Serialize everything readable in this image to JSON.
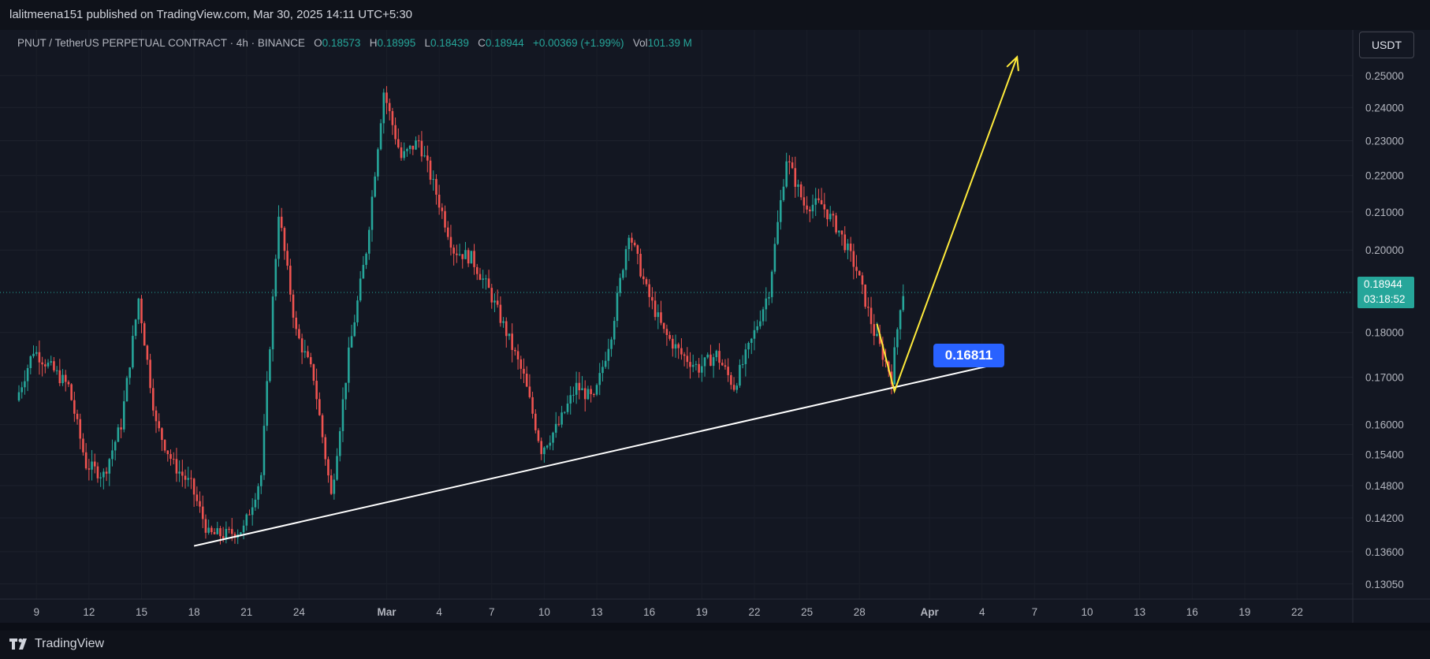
{
  "header": {
    "published_by": "lalitmeena151 published on TradingView.com, Mar 30, 2025 14:11 UTC+5:30"
  },
  "legend": {
    "symbol": "PNUT / TetherUS PERPETUAL CONTRACT · 4h · BINANCE",
    "open_label": "O",
    "open": "0.18573",
    "high_label": "H",
    "high": "0.18995",
    "low_label": "L",
    "low": "0.18439",
    "close_label": "C",
    "close": "0.18944",
    "change": "+0.00369 (+1.99%)",
    "vol_label": "Vol",
    "vol": "101.39 M"
  },
  "currency": "USDT",
  "price_tag": {
    "price": "0.18944",
    "countdown": "03:18:52"
  },
  "callout": {
    "value": "0.16811"
  },
  "brand": {
    "name": "TradingView",
    "icon": "tradingview-logo-icon"
  },
  "colors": {
    "up": "#26a69a",
    "down": "#ef5350",
    "background": "#131722",
    "trendline": "#ffffff",
    "projection": "#ffeb3b",
    "callout": "#2962ff"
  },
  "chart_data": {
    "type": "candlestick",
    "timeframe": "4h",
    "y_scale": "log",
    "ylim": [
      0.128,
      0.265
    ],
    "y_ticks": [
      "0.25000",
      "0.24000",
      "0.23000",
      "0.22000",
      "0.21000",
      "0.20000",
      "0.18000",
      "0.17000",
      "0.16000",
      "0.15400",
      "0.14800",
      "0.14200",
      "0.13600",
      "0.13050"
    ],
    "x_ticks": [
      "9",
      "12",
      "15",
      "18",
      "21",
      "24",
      "Mar",
      "4",
      "7",
      "10",
      "13",
      "16",
      "19",
      "22",
      "25",
      "28",
      "Apr",
      "4",
      "7",
      "10",
      "13",
      "16",
      "19",
      "22"
    ],
    "x_range": [
      "Feb 8",
      "Apr 24"
    ],
    "last_price": 0.18944,
    "close_path": [
      [
        "Feb 8",
        0.165
      ],
      [
        "Feb 9",
        0.176
      ],
      [
        "Feb 10",
        0.172
      ],
      [
        "Feb 11",
        0.168
      ],
      [
        "Feb 12",
        0.152
      ],
      [
        "Feb 13",
        0.15
      ],
      [
        "Feb 14",
        0.16
      ],
      [
        "Feb 15",
        0.188
      ],
      [
        "Feb 16",
        0.16
      ],
      [
        "Feb 17",
        0.152
      ],
      [
        "Feb 18",
        0.148
      ],
      [
        "Feb 19",
        0.139
      ],
      [
        "Feb 20",
        0.139
      ],
      [
        "Feb 21",
        0.14
      ],
      [
        "Feb 22",
        0.15
      ],
      [
        "Feb 23",
        0.21
      ],
      [
        "Feb 24",
        0.18
      ],
      [
        "Feb 25",
        0.17
      ],
      [
        "Feb 26",
        0.146
      ],
      [
        "Feb 27",
        0.175
      ],
      [
        "Feb 28",
        0.2
      ],
      [
        "Mar 1",
        0.245
      ],
      [
        "Mar 2",
        0.225
      ],
      [
        "Mar 3",
        0.23
      ],
      [
        "Mar 4",
        0.215
      ],
      [
        "Mar 5",
        0.2
      ],
      [
        "Mar 6",
        0.198
      ],
      [
        "Mar 7",
        0.19
      ],
      [
        "Mar 8",
        0.18
      ],
      [
        "Mar 9",
        0.17
      ],
      [
        "Mar 10",
        0.155
      ],
      [
        "Mar 11",
        0.16
      ],
      [
        "Mar 12",
        0.168
      ],
      [
        "Mar 13",
        0.165
      ],
      [
        "Mar 14",
        0.18
      ],
      [
        "Mar 15",
        0.205
      ],
      [
        "Mar 16",
        0.19
      ],
      [
        "Mar 17",
        0.18
      ],
      [
        "Mar 18",
        0.175
      ],
      [
        "Mar 19",
        0.172
      ],
      [
        "Mar 20",
        0.175
      ],
      [
        "Mar 21",
        0.168
      ],
      [
        "Mar 22",
        0.178
      ],
      [
        "Mar 23",
        0.19
      ],
      [
        "Mar 24",
        0.225
      ],
      [
        "Mar 25",
        0.212
      ],
      [
        "Mar 26",
        0.212
      ],
      [
        "Mar 27",
        0.205
      ],
      [
        "Mar 28",
        0.195
      ],
      [
        "Mar 29",
        0.18
      ],
      [
        "Mar 30",
        0.17
      ],
      [
        "Mar 30 14:00",
        0.18944
      ]
    ],
    "annotations": [
      {
        "type": "trendline",
        "from": [
          "Feb 18",
          0.137
        ],
        "to": [
          "Apr 5",
          0.173
        ]
      },
      {
        "type": "projection",
        "points": [
          [
            "Mar 29",
            0.182
          ],
          [
            "Mar 30",
            0.167
          ],
          [
            "Apr 6",
            0.256
          ]
        ]
      },
      {
        "type": "label",
        "text": "0.16811",
        "at": [
          "Mar 30",
          0.16811
        ]
      }
    ]
  }
}
